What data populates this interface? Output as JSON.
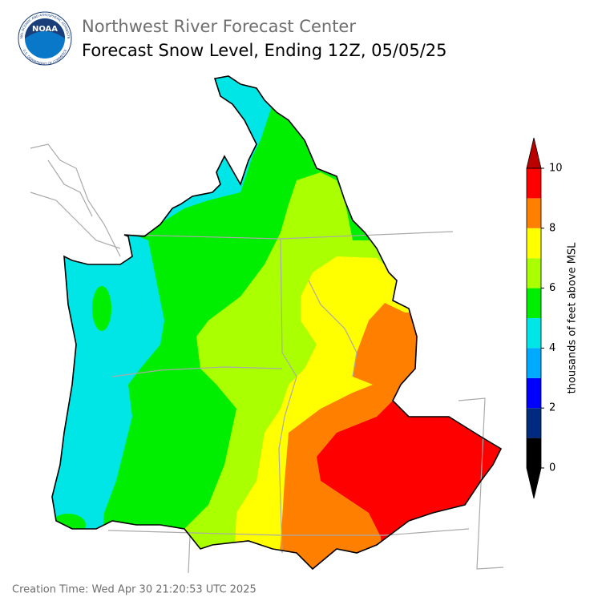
{
  "header": {
    "agency": "Northwest River Forecast Center",
    "title": "Forecast Snow Level, Ending 12Z, 05/05/25"
  },
  "logo": {
    "text": "NOAA",
    "ring_top": "NATIONAL OCEANIC AND ATMOSPHERIC ADMINISTRATION",
    "ring_bottom": "U.S. DEPARTMENT OF COMMERCE"
  },
  "colorbar": {
    "label": "thousands of feet above MSL",
    "lim": [
      0,
      10
    ],
    "ticks": [
      0,
      2,
      4,
      6,
      8,
      10
    ],
    "colors": [
      "#000000",
      "#002a80",
      "#0000ff",
      "#00aaff",
      "#00e5e5",
      "#00ee00",
      "#aaff00",
      "#ffff00",
      "#ff8000",
      "#ff0000"
    ],
    "over_color": "#bb0000",
    "under_color": "#000000"
  },
  "footer": "Creation Time: Wed Apr 30 21:20:53 UTC 2025"
}
